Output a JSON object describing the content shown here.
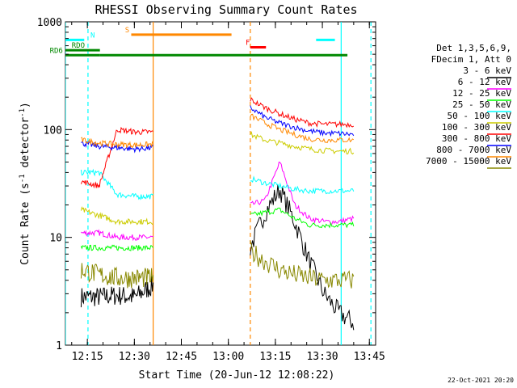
{
  "chart_data": {
    "type": "line",
    "title": "RHESSI Observing Summary Count Rates",
    "xlabel": "Start Time (20-Jun-12 12:08:22)",
    "ylabel_parts": [
      "Count Rate (s",
      "-1",
      " detector",
      "-1",
      ")"
    ],
    "yscale": "log",
    "ylim": [
      1,
      1000
    ],
    "xlim_minutes": [
      0,
      99
    ],
    "y_ticks": [
      {
        "value": 1,
        "label": "1"
      },
      {
        "value": 10,
        "label": "10"
      },
      {
        "value": 100,
        "label": "100"
      },
      {
        "value": 1000,
        "label": "1000"
      }
    ],
    "x_ticks": [
      {
        "minutes": 7,
        "label": "12:15"
      },
      {
        "minutes": 22,
        "label": "12:30"
      },
      {
        "minutes": 37,
        "label": "12:45"
      },
      {
        "minutes": 52,
        "label": "13:00"
      },
      {
        "minutes": 67,
        "label": "13:15"
      },
      {
        "minutes": 82,
        "label": "13:30"
      },
      {
        "minutes": 97,
        "label": "13:45"
      }
    ],
    "legend_header": [
      "Det 1,3,5,6,9,",
      "FDecim 1, Att 0"
    ],
    "legend_position": "right",
    "footer_date": "22-Oct-2021 20:20",
    "segments": [
      [
        5,
        28
      ],
      [
        59,
        92
      ]
    ],
    "series": [
      {
        "name": "3 - 6 keV",
        "color": "#000000",
        "seg1": [
          2.8,
          2.8,
          2.9,
          2.8,
          3.6
        ],
        "seg2": [
          8,
          17,
          28,
          14,
          6,
          3,
          2,
          1.6
        ]
      },
      {
        "name": "6 - 12 keV",
        "color": "#ff00ff",
        "seg1": [
          11,
          11,
          10,
          10,
          10
        ],
        "seg2": [
          20,
          22,
          50,
          20,
          15,
          14,
          14,
          15
        ]
      },
      {
        "name": "12 - 25 keV",
        "color": "#00ff00",
        "seg1": [
          8,
          8,
          8,
          8,
          8
        ],
        "seg2": [
          16,
          17,
          18,
          15,
          13,
          13,
          13,
          13
        ]
      },
      {
        "name": "25 - 50 keV",
        "color": "#00ffff",
        "seg1": [
          40,
          40,
          25,
          24,
          24
        ],
        "seg2": [
          35,
          32,
          30,
          28,
          27,
          27,
          27,
          27
        ]
      },
      {
        "name": "50 - 100 keV",
        "color": "#cccc00",
        "seg1": [
          18,
          16,
          14,
          14,
          14
        ],
        "seg2": [
          90,
          80,
          75,
          70,
          66,
          64,
          63,
          63
        ]
      },
      {
        "name": "100 - 300 keV",
        "color": "#ff0000",
        "seg1": [
          33,
          30,
          100,
          95,
          95
        ],
        "seg2": [
          190,
          160,
          140,
          125,
          115,
          112,
          112,
          112
        ]
      },
      {
        "name": "300 - 800 keV",
        "color": "#0000ff",
        "seg1": [
          75,
          70,
          68,
          66,
          68
        ],
        "seg2": [
          160,
          130,
          115,
          105,
          97,
          93,
          92,
          90
        ]
      },
      {
        "name": "800 - 7000 keV",
        "color": "#ff8800",
        "seg1": [
          80,
          75,
          73,
          72,
          73
        ],
        "seg2": [
          135,
          115,
          100,
          90,
          82,
          80,
          80,
          80
        ]
      },
      {
        "name": "7000 - 15000 keV",
        "color": "#888800",
        "seg1": [
          5,
          4.5,
          4.2,
          4.2,
          4.2
        ],
        "seg2": [
          7.5,
          6,
          5,
          4.5,
          4.2,
          4.0,
          4.0,
          4.0
        ]
      }
    ],
    "flags": [
      {
        "label": "N",
        "color": "#00ffff",
        "segments": [
          [
            0,
            6
          ],
          [
            80,
            86
          ]
        ],
        "level": 680,
        "label_at": 8
      },
      {
        "label": "S",
        "color": "#ff8800",
        "segments": [
          [
            21,
            53
          ]
        ],
        "level": 760,
        "label_at": 19
      },
      {
        "label": "F",
        "color": "#ff0000",
        "segments": [
          [
            59,
            64
          ]
        ],
        "level": 580,
        "label_at": 57.5
      },
      {
        "label": "RDO",
        "color": "#008800",
        "segments": [
          [
            0,
            11
          ]
        ],
        "level": 545,
        "label_at": 2
      },
      {
        "label": "RD6",
        "color": "#008800",
        "segments": [
          [
            0,
            11
          ],
          [
            11,
            90
          ]
        ],
        "level": 490,
        "label_at": -5
      }
    ],
    "vlines": [
      {
        "minutes": 0,
        "color": "#00ffff",
        "style": "solid"
      },
      {
        "minutes": 7.2,
        "color": "#00ffff",
        "style": "dashed"
      },
      {
        "minutes": 28,
        "color": "#ff8800",
        "style": "solid"
      },
      {
        "minutes": 59,
        "color": "#ff8800",
        "style": "dashed"
      },
      {
        "minutes": 88,
        "color": "#00ffff",
        "style": "solid"
      },
      {
        "minutes": 97.5,
        "color": "#00ffff",
        "style": "dashed"
      }
    ]
  }
}
